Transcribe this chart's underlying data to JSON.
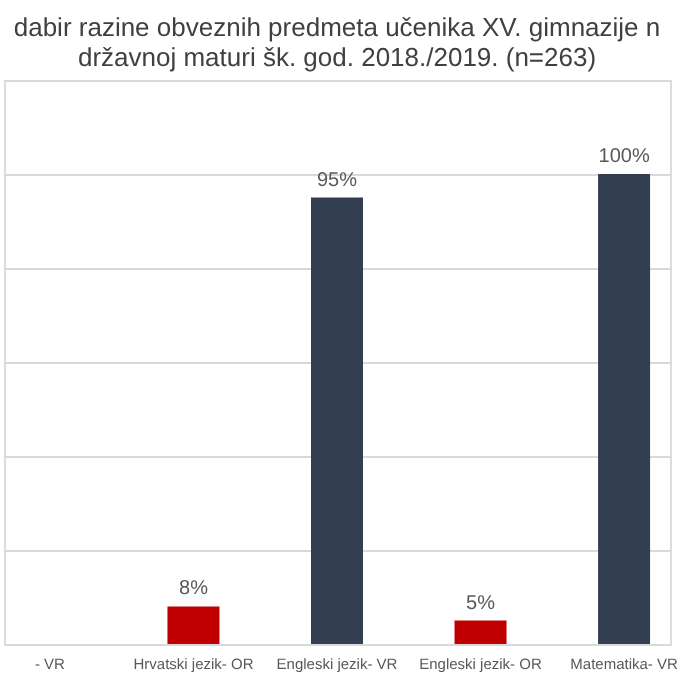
{
  "chart_data": {
    "type": "bar",
    "title": [
      "dabir razine obveznih predmeta učenika XV. gimnazije n",
      "državnoj maturi šk. god. 2018./2019. (n=263)"
    ],
    "categories": [
      "- VR",
      "Hrvatski jezik- OR",
      "Engleski jezik- VR",
      "Engleski jezik- OR",
      "Matematika- VR"
    ],
    "values": [
      null,
      8,
      95,
      5,
      100
    ],
    "colors": [
      "#333f50",
      "#c00000",
      "#333f50",
      "#c00000",
      "#333f50"
    ],
    "value_labels": [
      null,
      "8%",
      "95%",
      "5%",
      "100%"
    ],
    "ylim": [
      0,
      120
    ],
    "yticks": [
      {
        "value": 0,
        "label": null
      },
      {
        "value": 20,
        "label": null
      },
      {
        "value": 40,
        "label": null
      },
      {
        "value": 60,
        "label": null
      },
      {
        "value": 80,
        "label": null
      },
      {
        "value": 100,
        "label": null
      },
      {
        "value": 120,
        "label": null
      }
    ],
    "grid": "y",
    "tick_labels": "x"
  }
}
